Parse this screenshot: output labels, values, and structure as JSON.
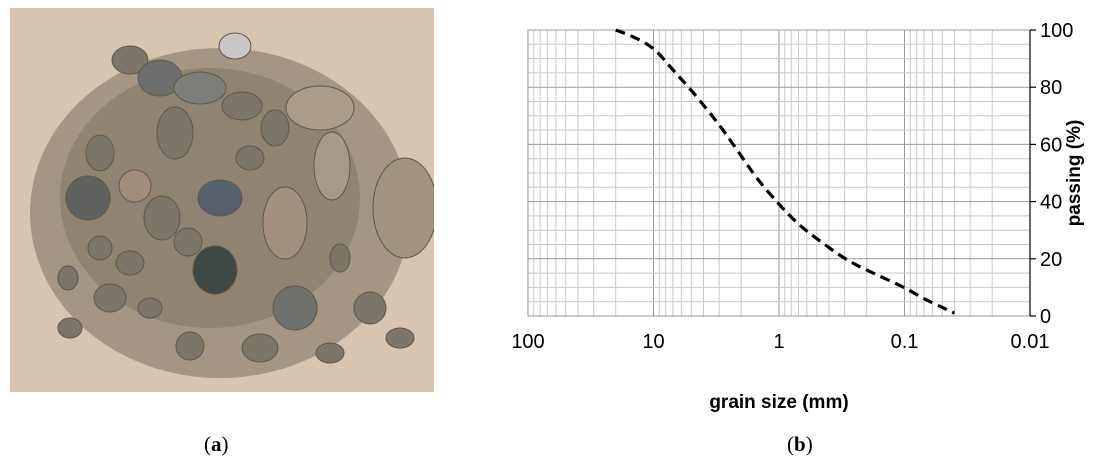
{
  "panel_a": {
    "caption_open": "(",
    "caption_letter": "a",
    "caption_close": ")"
  },
  "panel_b": {
    "caption_open": "(",
    "caption_letter": "b",
    "caption_close": ")"
  },
  "chart_data": {
    "type": "line",
    "title": "",
    "xlabel": "grain size (mm)",
    "ylabel": "passing (%)",
    "xscale": "log",
    "x_reversed": true,
    "xlim": [
      100,
      0.01
    ],
    "ylim": [
      0,
      100
    ],
    "x_ticks": [
      "100",
      "10",
      "1",
      "0.1",
      "0.01"
    ],
    "y_ticks": [
      "0",
      "20",
      "40",
      "60",
      "80",
      "100"
    ],
    "y_axis_side": "right",
    "grid": true,
    "line_style": "dashed",
    "line_color": "#000000",
    "series": [
      {
        "x": [
          20,
          15,
          10,
          7,
          5,
          3,
          2,
          1.5,
          1,
          0.7,
          0.5,
          0.3,
          0.2,
          0.1,
          0.07,
          0.05,
          0.04
        ],
        "values": [
          100,
          98,
          94,
          86,
          79,
          67,
          56,
          48,
          39,
          32,
          27,
          20,
          16,
          10,
          6,
          3,
          1
        ]
      }
    ]
  }
}
